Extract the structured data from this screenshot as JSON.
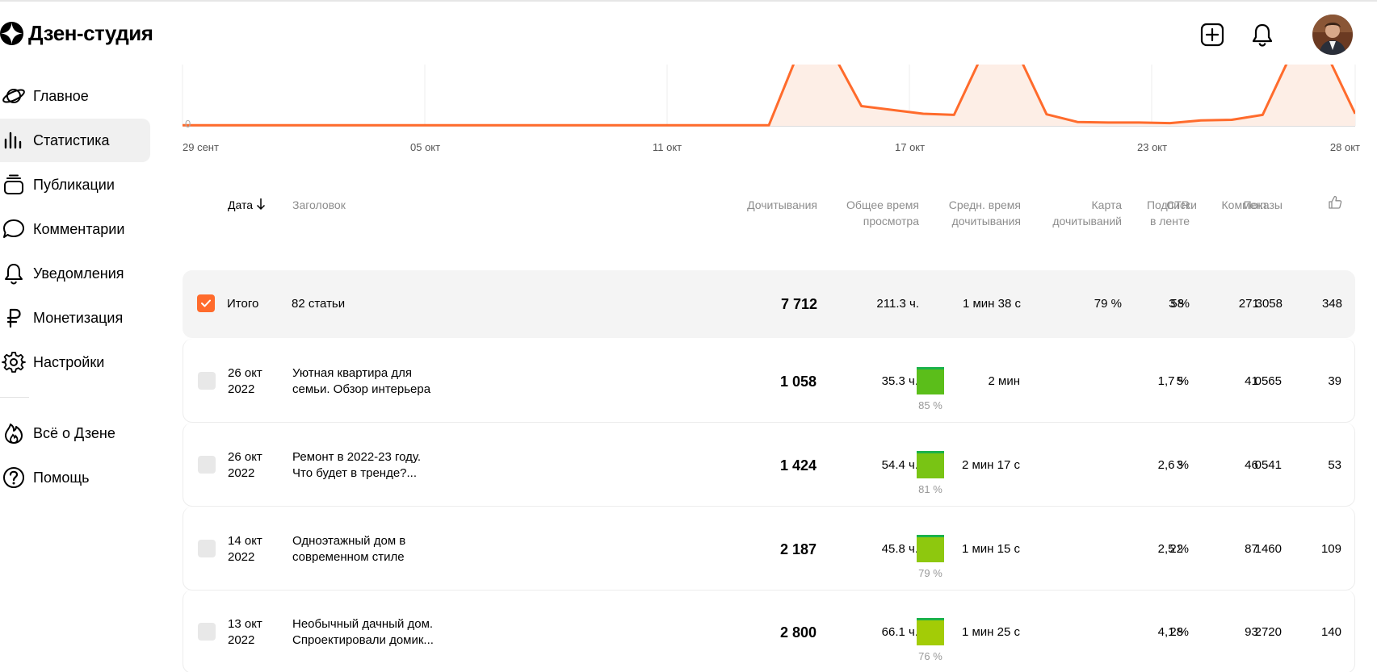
{
  "app": {
    "name": "Дзен-студия"
  },
  "header": {
    "icons": [
      "plus-square-icon",
      "bell-icon",
      "avatar"
    ]
  },
  "sidebar": {
    "items": [
      {
        "label": "Главное",
        "icon": "planet-icon"
      },
      {
        "label": "Статистика",
        "icon": "bar-chart-icon",
        "active": true
      },
      {
        "label": "Публикации",
        "icon": "stack-icon"
      },
      {
        "label": "Комментарии",
        "icon": "comment-icon"
      },
      {
        "label": "Уведомления",
        "icon": "bell-icon"
      },
      {
        "label": "Монетизация",
        "icon": "ruble-icon"
      },
      {
        "label": "Настройки",
        "icon": "gear-icon"
      }
    ],
    "secondary": [
      {
        "label": "Всё о Дзене",
        "icon": "flame-icon"
      },
      {
        "label": "Помощь",
        "icon": "help-icon"
      }
    ]
  },
  "chart_data": {
    "type": "area",
    "x_ticks": [
      "29 сент",
      "05 окт",
      "11 окт",
      "17 окт",
      "23 окт",
      "28 окт"
    ],
    "y_tick": "0",
    "line_color": "#ff6b2c",
    "fill_color": "#fdeee6",
    "grid": true,
    "note_clipped_peaks": "peaks extend above visible area",
    "series": [
      {
        "points_relative": [
          [
            0,
            0.01
          ],
          [
            1,
            0.01
          ],
          [
            2,
            0.01
          ],
          [
            3,
            0.01
          ],
          [
            4,
            0.01
          ],
          [
            5,
            0.01
          ],
          [
            6,
            0.01
          ],
          [
            7,
            0.01
          ],
          [
            8,
            0.01
          ],
          [
            9,
            0.01
          ],
          [
            10,
            0.01
          ],
          [
            11,
            0.01
          ],
          [
            12,
            0.01
          ],
          [
            13,
            0.01
          ],
          [
            14,
            0.01
          ],
          [
            15,
            0.01
          ],
          [
            16,
            0.01
          ],
          [
            17,
            0.01
          ],
          [
            18,
            0.01
          ],
          [
            19,
            0.01
          ],
          [
            20,
            1.4
          ],
          [
            21,
            1.4
          ],
          [
            22,
            0.36
          ],
          [
            23,
            0.29
          ],
          [
            24,
            0.22
          ],
          [
            25,
            0.2
          ],
          [
            26,
            1.4
          ],
          [
            27,
            1.4
          ],
          [
            28,
            0.21
          ],
          [
            29,
            0.07
          ],
          [
            30,
            0.06
          ],
          [
            31,
            0.06
          ],
          [
            32,
            0.05
          ],
          [
            33,
            0.1
          ],
          [
            34,
            0.11
          ],
          [
            35,
            0.2
          ],
          [
            36,
            1.4
          ],
          [
            37,
            1.4
          ],
          [
            38,
            0.22
          ]
        ]
      }
    ]
  },
  "table": {
    "headers": {
      "date": "Дата",
      "title": "Заголовок",
      "reads": "Дочитывания",
      "total_time_1": "Общее время",
      "total_time_2": "просмотра",
      "avg_time_1": "Средн. время",
      "avg_time_2": "дочитывания",
      "readmap_1": "Карта",
      "readmap_2": "дочитываний",
      "ctr_1": "CTR",
      "ctr_2": "в ленте",
      "views": "Показы",
      "subs": "Подписки",
      "comments": "Коммент.",
      "likes_icon": "thumbs-up-icon"
    },
    "total": {
      "label": "Итого",
      "title": "82 статьи",
      "reads": "7 712",
      "total_time": "211.3 ч.",
      "avg_time": "1 мин 38 с",
      "readmap": "79 %",
      "ctr": "3 %",
      "views": "271 058",
      "subs": "58",
      "comments": "3",
      "likes": "348"
    },
    "rows": [
      {
        "date_1": "26 окт",
        "date_2": "2022",
        "title_1": "Уютная квартира для",
        "title_2": "семьи. Обзор интерьера",
        "reads": "1 058",
        "total_time": "35.3 ч.",
        "avg_time": "2 мин",
        "readmap_pct": "85 %",
        "readmap_value": 0.85,
        "readmap_color": "#5bbe1a",
        "ctr": "1,7 %",
        "views": "41 565",
        "subs": "5",
        "comments": "0",
        "likes": "39"
      },
      {
        "date_1": "26 окт",
        "date_2": "2022",
        "title_1": "Ремонт в 2022-23 году.",
        "title_2": "Что будет в тренде?...",
        "reads": "1 424",
        "total_time": "54.4 ч.",
        "avg_time": "2 мин 17 с",
        "readmap_pct": "81 %",
        "readmap_value": 0.81,
        "readmap_color": "#79c414",
        "ctr": "2,6 %",
        "views": "46 541",
        "subs": "3",
        "comments": "0",
        "likes": "53"
      },
      {
        "date_1": "14 окт",
        "date_2": "2022",
        "title_1": "Одноэтажный дом в",
        "title_2": "современном стиле",
        "reads": "2 187",
        "total_time": "45.8 ч.",
        "avg_time": "1 мин 15 с",
        "readmap_pct": "79 %",
        "readmap_value": 0.79,
        "readmap_color": "#8ec80e",
        "ctr": "2,5 %",
        "views": "87 460",
        "subs": "22",
        "comments": "1",
        "likes": "109"
      },
      {
        "date_1": "13 окт",
        "date_2": "2022",
        "title_1": "Необычный дачный дом.",
        "title_2": "Спроектировали домик...",
        "reads": "2 800",
        "total_time": "66.1 ч.",
        "avg_time": "1 мин 25 с",
        "readmap_pct": "76 %",
        "readmap_value": 0.76,
        "readmap_color": "#a3cc06",
        "ctr": "4,1 %",
        "views": "93 720",
        "subs": "28",
        "comments": "2",
        "likes": "140"
      }
    ]
  }
}
